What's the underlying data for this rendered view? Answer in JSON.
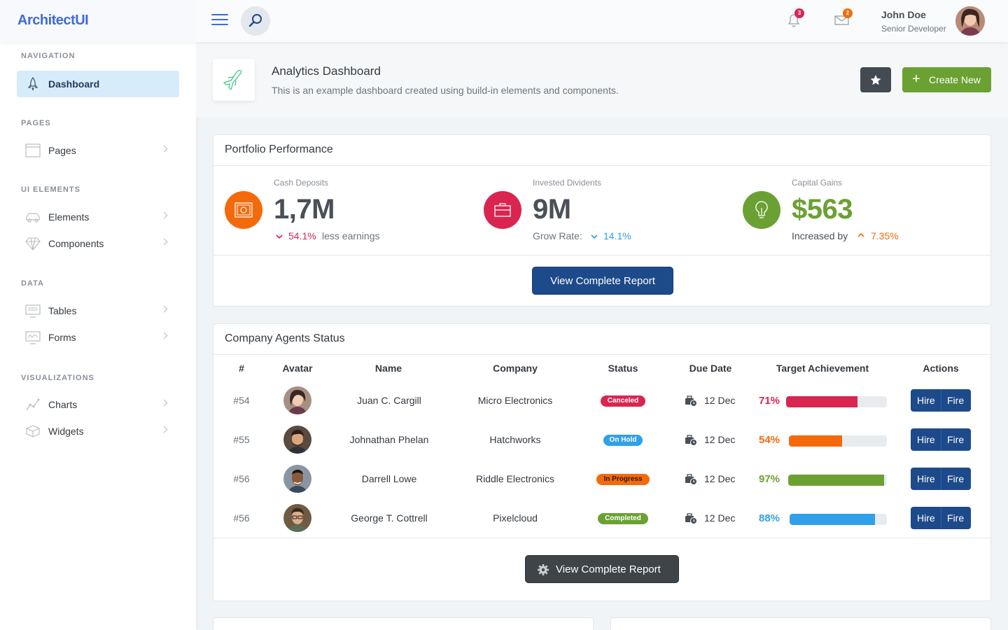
{
  "app": {
    "logo": "ArchitectUI"
  },
  "header": {
    "notifications_count": "3",
    "messages_count": "2",
    "user": {
      "name": "John Doe",
      "role": "Senior Developer"
    },
    "colors": {
      "accent": "#3f6ad8",
      "notif_badge": "#d92550",
      "msg_badge": "#f7b924"
    }
  },
  "sidebar": {
    "sections": [
      {
        "heading": "NAVIGATION",
        "items": [
          {
            "label": "Dashboard",
            "icon": "rocket-icon",
            "active": true
          }
        ]
      },
      {
        "heading": "PAGES",
        "items": [
          {
            "label": "Pages",
            "icon": "browser-icon"
          }
        ]
      },
      {
        "heading": "UI ELEMENTS",
        "items": [
          {
            "label": "Elements",
            "icon": "car-icon"
          },
          {
            "label": "Components",
            "icon": "diamond-icon"
          }
        ]
      },
      {
        "heading": "DATA",
        "items": [
          {
            "label": "Tables",
            "icon": "monitor-icon"
          },
          {
            "label": "Forms",
            "icon": "form-icon"
          }
        ]
      },
      {
        "heading": "VISUALIZATIONS",
        "items": [
          {
            "label": "Charts",
            "icon": "graph-icon"
          },
          {
            "label": "Widgets",
            "icon": "box-icon"
          }
        ]
      }
    ]
  },
  "page": {
    "title": "Analytics Dashboard",
    "subtitle": "This is an example dashboard created using build-in elements and components.",
    "create_label": "Create New"
  },
  "portfolio": {
    "title": "Portfolio Performance",
    "stats": [
      {
        "label": "Cash Deposits",
        "value": "1,7M",
        "sub_prefix": "",
        "sub_value": "54.1%",
        "sub_suffix": "less earnings",
        "direction": "down",
        "color": "#f46a0b",
        "icon": "safe-icon"
      },
      {
        "label": "Invested Dividents",
        "value": "9M",
        "sub_prefix": "Grow Rate:",
        "sub_value": "14.1%",
        "sub_suffix": "",
        "direction": "down",
        "color": "#d92550",
        "icon": "briefcase-icon"
      },
      {
        "label": "Capital Gains",
        "value": "$563",
        "sub_prefix": "Increased by",
        "sub_value": "7.35%",
        "sub_suffix": "",
        "direction": "up",
        "color": "#6ba133",
        "icon": "lightbulb-icon"
      }
    ],
    "report_label": "View Complete Report"
  },
  "agents": {
    "title": "Company Agents Status",
    "columns": [
      "#",
      "Avatar",
      "Name",
      "Company",
      "Status",
      "Due Date",
      "Target Achievement",
      "Actions"
    ],
    "rows": [
      {
        "id": "#54",
        "name": "Juan C. Cargill",
        "company": "Micro Electronics",
        "status": "Canceled",
        "status_color": "#d92550",
        "due": "12 Dec",
        "pct": "71%",
        "pct_value": 0.71,
        "bar_color": "#d92550"
      },
      {
        "id": "#55",
        "name": "Johnathan Phelan",
        "company": "Hatchworks",
        "status": "On Hold",
        "status_color": "#30a0e8",
        "due": "12 Dec",
        "pct": "54%",
        "pct_value": 0.54,
        "bar_color": "#f46a0b"
      },
      {
        "id": "#56",
        "name": "Darrell Lowe",
        "company": "Riddle Electronics",
        "status": "In Progress",
        "status_color": "#f46a0b",
        "due": "12 Dec",
        "pct": "97%",
        "pct_value": 0.97,
        "bar_color": "#6ba133"
      },
      {
        "id": "#56",
        "name": "George T. Cottrell",
        "company": "Pixelcloud",
        "status": "Completed",
        "status_color": "#6ba133",
        "due": "12 Dec",
        "pct": "88%",
        "pct_value": 0.88,
        "bar_color": "#30a0e8"
      }
    ],
    "hire_label": "Hire",
    "fire_label": "Fire",
    "report_label": "View Complete Report"
  }
}
